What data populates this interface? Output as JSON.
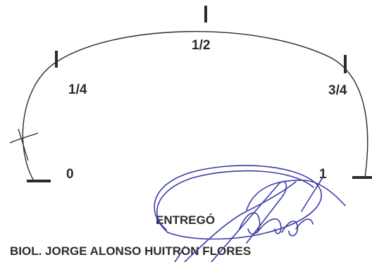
{
  "scale": {
    "label_zero": "0",
    "label_quarter": "1/4",
    "label_half": "1/2",
    "label_three_quarters": "3/4",
    "label_one": "1"
  },
  "signature_block": {
    "role_label": "ENTREGÓ",
    "name": "BIOL. JORGE ALONSO HUITRON FLORES"
  },
  "colors": {
    "ink": "#2b2b2b",
    "signature_ink": "#3a3aa8"
  }
}
